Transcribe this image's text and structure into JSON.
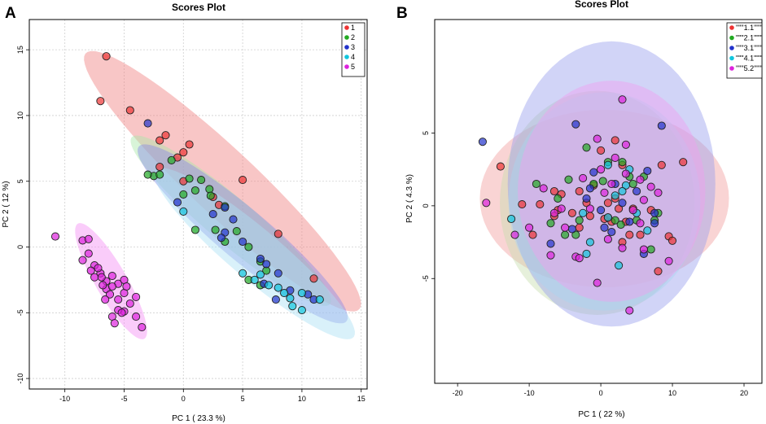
{
  "chart_data": [
    {
      "panel_label": "A",
      "type": "scatter",
      "title": "Scores Plot",
      "xlabel": "PC 1 ( 23.3 %)",
      "ylabel": "PC 2 ( 12 %)",
      "xlim": [
        -13,
        15.5
      ],
      "ylim": [
        -10.8,
        17.3
      ],
      "xticks": [
        -10,
        -5,
        0,
        5,
        10,
        15
      ],
      "yticks": [
        -10,
        -5,
        0,
        5,
        10,
        15
      ],
      "grid": true,
      "legend_position": "top-right",
      "series": [
        {
          "name": "1",
          "color": "#ee3333",
          "fill": "#f08080",
          "ellipse": {
            "cx": 3.3,
            "cy": 5.0,
            "a": 15.1,
            "b": 2.6,
            "angle": -40
          },
          "points": [
            [
              -6.5,
              14.5
            ],
            [
              -7,
              11.1
            ],
            [
              -4.5,
              10.4
            ],
            [
              -1.5,
              8.5
            ],
            [
              -2,
              8.1
            ],
            [
              0.5,
              7.8
            ],
            [
              0,
              7.2
            ],
            [
              -0.5,
              6.8
            ],
            [
              -2,
              6.1
            ],
            [
              2.5,
              3.8
            ],
            [
              3,
              3.2
            ],
            [
              5,
              5.1
            ],
            [
              8,
              1
            ],
            [
              11,
              -2.4
            ],
            [
              0,
              5
            ]
          ]
        },
        {
          "name": "2",
          "color": "#22aa22",
          "fill": "#a8e6a8",
          "ellipse": {
            "cx": 4.0,
            "cy": 2.0,
            "a": 10.5,
            "b": 1.8,
            "angle": -37
          },
          "points": [
            [
              -1,
              6.6
            ],
            [
              -2.5,
              5.4
            ],
            [
              -3,
              5.5
            ],
            [
              0.5,
              5.2
            ],
            [
              1,
              4.3
            ],
            [
              1.5,
              5.1
            ],
            [
              2.2,
              4.4
            ],
            [
              2.3,
              3.9
            ],
            [
              3.5,
              3.1
            ],
            [
              1,
              1.3
            ],
            [
              2.7,
              1.3
            ],
            [
              3.5,
              0.4
            ],
            [
              4.5,
              1.2
            ],
            [
              5.5,
              0
            ],
            [
              6.5,
              -1.1
            ],
            [
              6.5,
              -2.9
            ],
            [
              7,
              -1.8
            ],
            [
              5.5,
              -2.5
            ],
            [
              -2,
              5.5
            ],
            [
              0,
              4
            ]
          ]
        },
        {
          "name": "3",
          "color": "#2233cc",
          "fill": "#8a8ae6",
          "ellipse": {
            "cx": 5.0,
            "cy": 1.0,
            "a": 11.0,
            "b": 2.0,
            "angle": -37
          },
          "points": [
            [
              -3,
              9.4
            ],
            [
              -0.5,
              3.4
            ],
            [
              2.5,
              2.5
            ],
            [
              3.5,
              3
            ],
            [
              3.5,
              1.1
            ],
            [
              3.2,
              0.7
            ],
            [
              4.2,
              2.1
            ],
            [
              5,
              0.4
            ],
            [
              6.5,
              -0.9
            ],
            [
              7,
              -1.3
            ],
            [
              8,
              -2
            ],
            [
              9,
              -3.3
            ],
            [
              10.5,
              -3.6
            ],
            [
              11,
              -4
            ],
            [
              7.8,
              -4
            ],
            [
              6.8,
              -2.8
            ]
          ]
        },
        {
          "name": "4",
          "color": "#11c6dd",
          "fill": "#aadff5",
          "ellipse": {
            "cx": 6.0,
            "cy": -0.5,
            "a": 10.5,
            "b": 2.0,
            "angle": -37
          },
          "points": [
            [
              0,
              2.7
            ],
            [
              5,
              -2
            ],
            [
              6,
              -2.5
            ],
            [
              6.5,
              -2.1
            ],
            [
              7.2,
              -2.9
            ],
            [
              8,
              -3.1
            ],
            [
              8.5,
              -3.5
            ],
            [
              9,
              -3.9
            ],
            [
              10,
              -4.8
            ],
            [
              11.5,
              -4
            ],
            [
              9.2,
              -4.5
            ],
            [
              10,
              -3.5
            ]
          ]
        },
        {
          "name": "5",
          "color": "#dd22dd",
          "fill": "#f48ff4",
          "ellipse": {
            "cx": -6.1,
            "cy": -2.6,
            "a": 5.2,
            "b": 1.3,
            "angle": -57
          },
          "points": [
            [
              -10.8,
              0.8
            ],
            [
              -8.5,
              0.5
            ],
            [
              -8,
              0.6
            ],
            [
              -8.5,
              -1
            ],
            [
              -8,
              -0.5
            ],
            [
              -7.5,
              -1.4
            ],
            [
              -7,
              -2
            ],
            [
              -7.5,
              -2.3
            ],
            [
              -6.5,
              -2.6
            ],
            [
              -6,
              -2.2
            ],
            [
              -5.5,
              -2.8
            ],
            [
              -5,
              -2.5
            ],
            [
              -6.5,
              -3.2
            ],
            [
              -6,
              -3
            ],
            [
              -5,
              -3.5
            ],
            [
              -5.5,
              -4
            ],
            [
              -4.5,
              -4.3
            ],
            [
              -4,
              -3.8
            ],
            [
              -5,
              -4.9
            ],
            [
              -5.5,
              -4.8
            ],
            [
              -6,
              -5.3
            ],
            [
              -4,
              -5.3
            ],
            [
              -5.8,
              -5.8
            ],
            [
              -3.5,
              -6.1
            ],
            [
              -7.2,
              -1.6
            ],
            [
              -6.8,
              -2.9
            ],
            [
              -6.2,
              -3.6
            ],
            [
              -4.8,
              -3
            ],
            [
              -5.2,
              -5
            ],
            [
              -6.6,
              -4
            ],
            [
              -7.8,
              -1.8
            ],
            [
              -6.9,
              -2.3
            ]
          ]
        }
      ]
    },
    {
      "panel_label": "B",
      "type": "scatter",
      "title": "Scores Plot",
      "xlabel": "PC 1 ( 22 %)",
      "ylabel": "PC 2 ( 4.3 %)",
      "xlim": [
        -23.2,
        22.5
      ],
      "ylim": [
        -12.2,
        12.8
      ],
      "xticks": [
        -20,
        -10,
        0,
        10,
        20
      ],
      "yticks": [
        -5,
        0,
        5
      ],
      "grid": false,
      "legend_position": "top-right",
      "series": [
        {
          "name": "\"\"\"1.1\"\"\"",
          "color": "#ee3333",
          "fill": "#f2a0a0",
          "ellipse": {
            "cx": 0.5,
            "cy": 0.5,
            "a": 17.4,
            "b": 6.1,
            "angle": 0
          },
          "points": [
            [
              -14,
              2.7
            ],
            [
              -11,
              0.1
            ],
            [
              -9.5,
              -2
            ],
            [
              -8.5,
              0.1
            ],
            [
              -6,
              -0.3
            ],
            [
              -6.5,
              1
            ],
            [
              -4,
              -0.5
            ],
            [
              -3,
              1
            ],
            [
              -2,
              0.2
            ],
            [
              -1.5,
              -0.7
            ],
            [
              -1,
              1.4
            ],
            [
              0,
              3.8
            ],
            [
              0.5,
              -0.9
            ],
            [
              1,
              0.2
            ],
            [
              1.5,
              -1.1
            ],
            [
              2,
              0.5
            ],
            [
              2.5,
              -0.2
            ],
            [
              3,
              2.8
            ],
            [
              3.5,
              -1.1
            ],
            [
              4.5,
              -0.2
            ],
            [
              4,
              -2
            ],
            [
              7,
              -0.3
            ],
            [
              8.5,
              2.8
            ],
            [
              9.5,
              -2.1
            ],
            [
              10,
              -2.4
            ],
            [
              11.5,
              3
            ],
            [
              -3,
              -1.5
            ],
            [
              3,
              -2.5
            ],
            [
              -5.5,
              0.8
            ],
            [
              2,
              4.5
            ],
            [
              8,
              -4.5
            ],
            [
              1,
              -0.8
            ],
            [
              -6.5,
              -0.7
            ],
            [
              5.5,
              -2
            ]
          ]
        },
        {
          "name": "\"\"\"2.1\"\"\"",
          "color": "#22aa22",
          "fill": "#c8ddb0",
          "ellipse": {
            "cx": -0.5,
            "cy": 0.2,
            "a": 13.6,
            "b": 7.7,
            "angle": 0
          },
          "points": [
            [
              -9,
              1.5
            ],
            [
              -6,
              0.5
            ],
            [
              -5,
              -2
            ],
            [
              -3,
              -1
            ],
            [
              -2,
              4
            ],
            [
              -1,
              1.5
            ],
            [
              1,
              3
            ],
            [
              2,
              -1
            ],
            [
              3,
              3
            ],
            [
              4,
              2
            ],
            [
              5,
              -1
            ],
            [
              6,
              2
            ],
            [
              8,
              -0.5
            ],
            [
              7,
              -3
            ],
            [
              -3.5,
              -2
            ],
            [
              2.8,
              -1.3
            ],
            [
              -7,
              -1.2
            ],
            [
              0.3,
              1.7
            ],
            [
              4.5,
              1.5
            ],
            [
              7.5,
              -1
            ],
            [
              -4.5,
              1.8
            ]
          ]
        },
        {
          "name": "\"\"\"3.1\"\"\"",
          "color": "#2233cc",
          "fill": "#9aa0ee",
          "ellipse": {
            "cx": 1.5,
            "cy": 1.5,
            "a": 14.5,
            "b": 9.8,
            "angle": 0
          },
          "points": [
            [
              -16.5,
              4.4
            ],
            [
              -3.5,
              5.6
            ],
            [
              8.5,
              5.5
            ],
            [
              -2,
              0.5
            ],
            [
              -1.5,
              1.2
            ],
            [
              2,
              1.5
            ],
            [
              0.5,
              -1.5
            ],
            [
              4,
              -1.1
            ],
            [
              5,
              1
            ],
            [
              6.5,
              2.4
            ],
            [
              7.5,
              -1.2
            ],
            [
              -7,
              -2.6
            ],
            [
              1.5,
              -1.8
            ],
            [
              3,
              0.2
            ],
            [
              6,
              -3.3
            ],
            [
              7.5,
              -0.5
            ],
            [
              -4,
              -1.6
            ],
            [
              0,
              -0.3
            ],
            [
              -1,
              2.3
            ]
          ]
        },
        {
          "name": "\"\"\"4.1\"\"\"",
          "color": "#11c6dd",
          "fill": "#a9d4f0",
          "ellipse": {
            "cx": 0.5,
            "cy": 0.3,
            "a": 13.4,
            "b": 7.5,
            "angle": 0
          },
          "points": [
            [
              -12.5,
              -0.9
            ],
            [
              -2.5,
              -0.5
            ],
            [
              -2,
              -3.3
            ],
            [
              1,
              2.8
            ],
            [
              2,
              0.7
            ],
            [
              3.5,
              1.4
            ],
            [
              4,
              2.5
            ],
            [
              6.5,
              -1.7
            ],
            [
              1,
              -0.8
            ],
            [
              2.5,
              -4.1
            ],
            [
              5,
              -0.5
            ],
            [
              -1.5,
              -2.5
            ],
            [
              3,
              1
            ]
          ]
        },
        {
          "name": "\"\"\"5.2\"\"\"",
          "color": "#dd22dd",
          "fill": "#f0a0f0",
          "ellipse": {
            "cx": 1.5,
            "cy": 1.0,
            "a": 13.1,
            "b": 7.6,
            "angle": 0
          },
          "points": [
            [
              -16,
              0.2
            ],
            [
              -12,
              -2
            ],
            [
              -10,
              -1.5
            ],
            [
              -7,
              -3.4
            ],
            [
              -5.5,
              -0.2
            ],
            [
              -5,
              -1.5
            ],
            [
              -3.5,
              -3.5
            ],
            [
              -1.5,
              -0.2
            ],
            [
              0,
              2.5
            ],
            [
              -0.5,
              4.6
            ],
            [
              1,
              -2.3
            ],
            [
              2,
              3.3
            ],
            [
              3,
              -2.9
            ],
            [
              3.5,
              4.2
            ],
            [
              3,
              7.3
            ],
            [
              4.5,
              -0.3
            ],
            [
              5.5,
              1.8
            ],
            [
              6,
              0.4
            ],
            [
              7,
              1.3
            ],
            [
              8,
              0.9
            ],
            [
              9.5,
              -3.8
            ],
            [
              -0.5,
              -5.3
            ],
            [
              4,
              -7.2
            ],
            [
              -8,
              1.2
            ],
            [
              -2.5,
              1.9
            ],
            [
              5.5,
              -1.2
            ],
            [
              -3,
              -3.6
            ],
            [
              1.5,
              1.5
            ],
            [
              3.5,
              2.2
            ],
            [
              -6.5,
              -0.5
            ],
            [
              0.5,
              0.9
            ],
            [
              6,
              -3
            ]
          ]
        }
      ]
    }
  ]
}
